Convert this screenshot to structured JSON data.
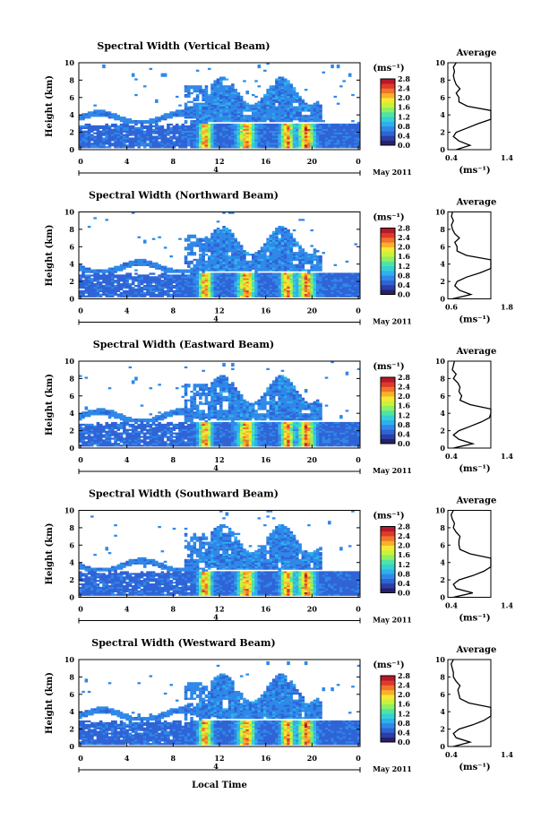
{
  "figure": {
    "xaxis_label": "Local Time",
    "date_prefix": "4",
    "date_suffix": "May 2011",
    "colorbar_unit": "(ms⁻¹)",
    "profile_title": "Average",
    "profile_unit": "(ms⁻¹)",
    "colormap": [
      "#2a1f6b",
      "#2b3fa5",
      "#2f63d6",
      "#2f88e8",
      "#2fb0ee",
      "#33d1d3",
      "#4fe3a6",
      "#8fef62",
      "#c9f23d",
      "#f5e92f",
      "#f9b02b",
      "#f2742a",
      "#df3b2b",
      "#b8182a"
    ]
  },
  "chart_data": [
    {
      "type": "heatmap",
      "title": "Spectral Width (Vertical Beam)",
      "ylabel": "Height (km)",
      "xlabel": "Local Time",
      "x_ticks": [
        "0",
        "4",
        "8",
        "12",
        "16",
        "20",
        "0"
      ],
      "y_ticks": [
        "0",
        "2",
        "4",
        "6",
        "8",
        "10"
      ],
      "xlim": [
        0,
        24
      ],
      "ylim": [
        0,
        10
      ],
      "colorbar": {
        "ticks": [
          "0.0",
          "0.4",
          "0.8",
          "1.2",
          "1.6",
          "2.0",
          "2.4",
          "2.8"
        ],
        "range": [
          0,
          2.8
        ]
      },
      "profile": {
        "title": "Average",
        "x_ticks": [
          "0.4",
          "1.4"
        ],
        "xlim": [
          0.4,
          1.4
        ],
        "y_ticks": [
          "0",
          "2",
          "4",
          "6",
          "8",
          "10"
        ],
        "height": [
          0.0,
          0.5,
          1.0,
          1.5,
          2.0,
          2.5,
          3.0,
          3.5,
          4.0,
          4.5,
          5.0,
          5.5,
          6.0,
          6.5,
          7.0,
          7.5,
          8.0,
          8.5,
          9.0,
          9.5,
          10.0
        ],
        "value": [
          0.55,
          0.8,
          0.6,
          0.5,
          0.55,
          0.75,
          0.95,
          1.2,
          1.35,
          1.3,
          0.75,
          0.6,
          0.6,
          0.55,
          0.62,
          0.55,
          0.52,
          0.5,
          0.52,
          0.5,
          0.55
        ]
      }
    },
    {
      "type": "heatmap",
      "title": "Spectral Width (Northward Beam)",
      "ylabel": "Height (km)",
      "xlabel": "Local Time",
      "x_ticks": [
        "0",
        "4",
        "8",
        "12",
        "16",
        "20",
        "0"
      ],
      "y_ticks": [
        "0",
        "2",
        "4",
        "6",
        "8",
        "10"
      ],
      "xlim": [
        0,
        24
      ],
      "ylim": [
        0,
        10
      ],
      "colorbar": {
        "ticks": [
          "0.0",
          "0.4",
          "0.8",
          "1.2",
          "1.6",
          "2.0",
          "2.4",
          "2.8"
        ],
        "range": [
          0,
          2.8
        ]
      },
      "profile": {
        "title": "Average",
        "x_ticks": [
          "0.6",
          "1.8"
        ],
        "xlim": [
          0.6,
          1.8
        ],
        "y_ticks": [
          "0",
          "2",
          "4",
          "6",
          "8",
          "10"
        ],
        "height": [
          0.0,
          0.5,
          1.0,
          1.5,
          2.0,
          2.5,
          3.0,
          3.5,
          4.0,
          4.5,
          5.0,
          5.5,
          6.0,
          6.5,
          7.0,
          7.5,
          8.0,
          8.5,
          9.0,
          9.5,
          10.0
        ],
        "value": [
          0.7,
          1.1,
          0.85,
          0.75,
          0.8,
          1.0,
          1.3,
          1.55,
          1.7,
          1.6,
          1.0,
          0.8,
          0.8,
          0.75,
          0.85,
          0.75,
          0.7,
          0.68,
          0.72,
          0.68,
          0.7
        ]
      }
    },
    {
      "type": "heatmap",
      "title": "Spectral Width (Eastward Beam)",
      "ylabel": "Height (km)",
      "xlabel": "Local Time",
      "x_ticks": [
        "0",
        "4",
        "8",
        "12",
        "16",
        "20",
        "0"
      ],
      "y_ticks": [
        "0",
        "2",
        "4",
        "6",
        "8",
        "10"
      ],
      "xlim": [
        0,
        24
      ],
      "ylim": [
        0,
        10
      ],
      "colorbar": {
        "ticks": [
          "0.0",
          "0.4",
          "0.8",
          "1.2",
          "1.6",
          "2.0",
          "2.4",
          "2.8"
        ],
        "range": [
          0,
          2.8
        ]
      },
      "profile": {
        "title": "Average",
        "x_ticks": [
          "0.4",
          "1.4"
        ],
        "xlim": [
          0.4,
          1.4
        ],
        "y_ticks": [
          "0",
          "2",
          "4",
          "6",
          "8",
          "10"
        ],
        "height": [
          0.0,
          0.5,
          1.0,
          1.5,
          2.0,
          2.5,
          3.0,
          3.5,
          4.0,
          4.5,
          5.0,
          5.5,
          6.0,
          6.5,
          7.0,
          7.5,
          8.0,
          8.5,
          9.0,
          9.5,
          10.0
        ],
        "value": [
          0.5,
          0.85,
          0.6,
          0.5,
          0.6,
          0.8,
          1.0,
          1.15,
          1.3,
          1.2,
          0.8,
          0.62,
          0.65,
          0.6,
          0.62,
          0.58,
          0.5,
          0.55,
          0.48,
          0.5,
          0.52
        ]
      }
    },
    {
      "type": "heatmap",
      "title": "Spectral Width (Southward Beam)",
      "ylabel": "Height (km)",
      "xlabel": "Local Time",
      "x_ticks": [
        "0",
        "4",
        "8",
        "12",
        "16",
        "20",
        "0"
      ],
      "y_ticks": [
        "0",
        "2",
        "4",
        "6",
        "8",
        "10"
      ],
      "xlim": [
        0,
        24
      ],
      "ylim": [
        0,
        10
      ],
      "colorbar": {
        "ticks": [
          "0.0",
          "0.4",
          "0.8",
          "1.2",
          "1.6",
          "2.0",
          "2.4",
          "2.8"
        ],
        "range": [
          0,
          2.8
        ]
      },
      "profile": {
        "title": "Average",
        "x_ticks": [
          "0.4",
          "1.4"
        ],
        "xlim": [
          0.4,
          1.4
        ],
        "y_ticks": [
          "0",
          "2",
          "4",
          "6",
          "8",
          "10"
        ],
        "height": [
          0.0,
          0.5,
          1.0,
          1.5,
          2.0,
          2.5,
          3.0,
          3.5,
          4.0,
          4.5,
          5.0,
          5.5,
          6.0,
          6.5,
          7.0,
          7.5,
          8.0,
          8.5,
          9.0,
          9.5,
          10.0
        ],
        "value": [
          0.5,
          0.85,
          0.55,
          0.5,
          0.6,
          0.85,
          1.05,
          1.2,
          1.3,
          1.25,
          0.8,
          0.62,
          0.6,
          0.6,
          0.62,
          0.55,
          0.5,
          0.52,
          0.48,
          0.46,
          0.5
        ]
      }
    },
    {
      "type": "heatmap",
      "title": "Spectral Width (Westward Beam)",
      "ylabel": "Height (km)",
      "xlabel": "Local Time",
      "x_ticks": [
        "0",
        "4",
        "8",
        "12",
        "16",
        "20",
        "0"
      ],
      "y_ticks": [
        "0",
        "2",
        "4",
        "6",
        "8",
        "10"
      ],
      "xlim": [
        0,
        24
      ],
      "ylim": [
        0,
        10
      ],
      "colorbar": {
        "ticks": [
          "0.0",
          "0.4",
          "0.8",
          "1.2",
          "1.6",
          "2.0",
          "2.4",
          "2.8"
        ],
        "range": [
          0,
          2.8
        ]
      },
      "profile": {
        "title": "Average",
        "x_ticks": [
          "0.4",
          "1.4"
        ],
        "xlim": [
          0.4,
          1.4
        ],
        "y_ticks": [
          "0",
          "2",
          "4",
          "6",
          "8",
          "10"
        ],
        "height": [
          0.0,
          0.5,
          1.0,
          1.5,
          2.0,
          2.5,
          3.0,
          3.5,
          4.0,
          4.5,
          5.0,
          5.5,
          6.0,
          6.5,
          7.0,
          7.5,
          8.0,
          8.5,
          9.0,
          9.5,
          10.0
        ],
        "value": [
          0.5,
          0.8,
          0.55,
          0.5,
          0.6,
          0.85,
          1.05,
          1.2,
          1.3,
          1.2,
          0.78,
          0.62,
          0.6,
          0.58,
          0.62,
          0.55,
          0.5,
          0.5,
          0.48,
          0.46,
          0.5
        ]
      }
    }
  ]
}
